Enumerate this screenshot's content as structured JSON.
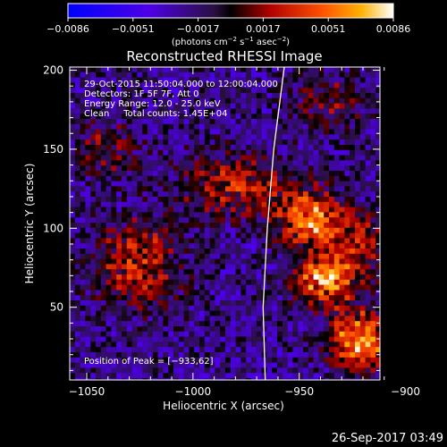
{
  "colorbar": {
    "ticks": [
      "−0.0086",
      "−0.0051",
      "−0.0017",
      "0.0017",
      "0.0051",
      "0.0086"
    ],
    "unit_main": "(photons cm",
    "unit_exp1": "−2",
    "unit_mid": " s",
    "unit_exp2": "−1",
    "unit_end": " asec",
    "unit_exp3": "−2",
    "unit_close": ")",
    "range": [
      -0.0086,
      0.0086
    ]
  },
  "chart_data": {
    "type": "heatmap",
    "title": "Reconstructed RHESSI Image",
    "xlabel": "Heliocentric X (arcsec)",
    "ylabel": "Heliocentric Y (arcsec)",
    "xlim": [
      -1058,
      -912
    ],
    "ylim": [
      4,
      202
    ],
    "x_ticks": [
      -1050,
      -1000,
      -950,
      -900
    ],
    "y_ticks": [
      50,
      100,
      150,
      200
    ],
    "x_tick_labels": [
      "−1050",
      "−1000",
      "−950",
      "−900"
    ],
    "y_tick_labels": [
      "50",
      "100",
      "150",
      "200"
    ],
    "sources": [
      {
        "x": -945,
        "y": 106,
        "peak": 0.0078,
        "sx": 10,
        "sy": 12
      },
      {
        "x": -938,
        "y": 66,
        "peak": 0.008,
        "sx": 10,
        "sy": 10
      },
      {
        "x": -921,
        "y": 30,
        "peak": 0.0084,
        "sx": 10,
        "sy": 12
      },
      {
        "x": -1026,
        "y": 78,
        "peak": 0.005,
        "sx": 14,
        "sy": 18
      },
      {
        "x": -980,
        "y": 128,
        "peak": 0.0045,
        "sx": 18,
        "sy": 14
      },
      {
        "x": -923,
        "y": 88,
        "peak": 0.0042,
        "sx": 12,
        "sy": 14
      },
      {
        "x": -1040,
        "y": 150,
        "peak": 0.003,
        "sx": 10,
        "sy": 12
      },
      {
        "x": -935,
        "y": 180,
        "peak": 0.0025,
        "sx": 14,
        "sy": 12
      }
    ],
    "limb_points": [
      [
        -957,
        202
      ],
      [
        -962,
        150
      ],
      [
        -965,
        100
      ],
      [
        -967,
        50
      ],
      [
        -966,
        4
      ]
    ],
    "legend_lines": [
      "29-Oct-2015 11:50:04.000 to 12:00:04.000",
      "Detectors: 1F 5F 7F, Att 0",
      "Energy Range: 12.0 - 25.0 keV",
      "Clean     Total counts: 1.45E+04"
    ],
    "peak_label": "Position of Peak = [−933,62]",
    "grid": false
  },
  "footer": {
    "timestamp": "26-Sep-2017 03:49"
  }
}
